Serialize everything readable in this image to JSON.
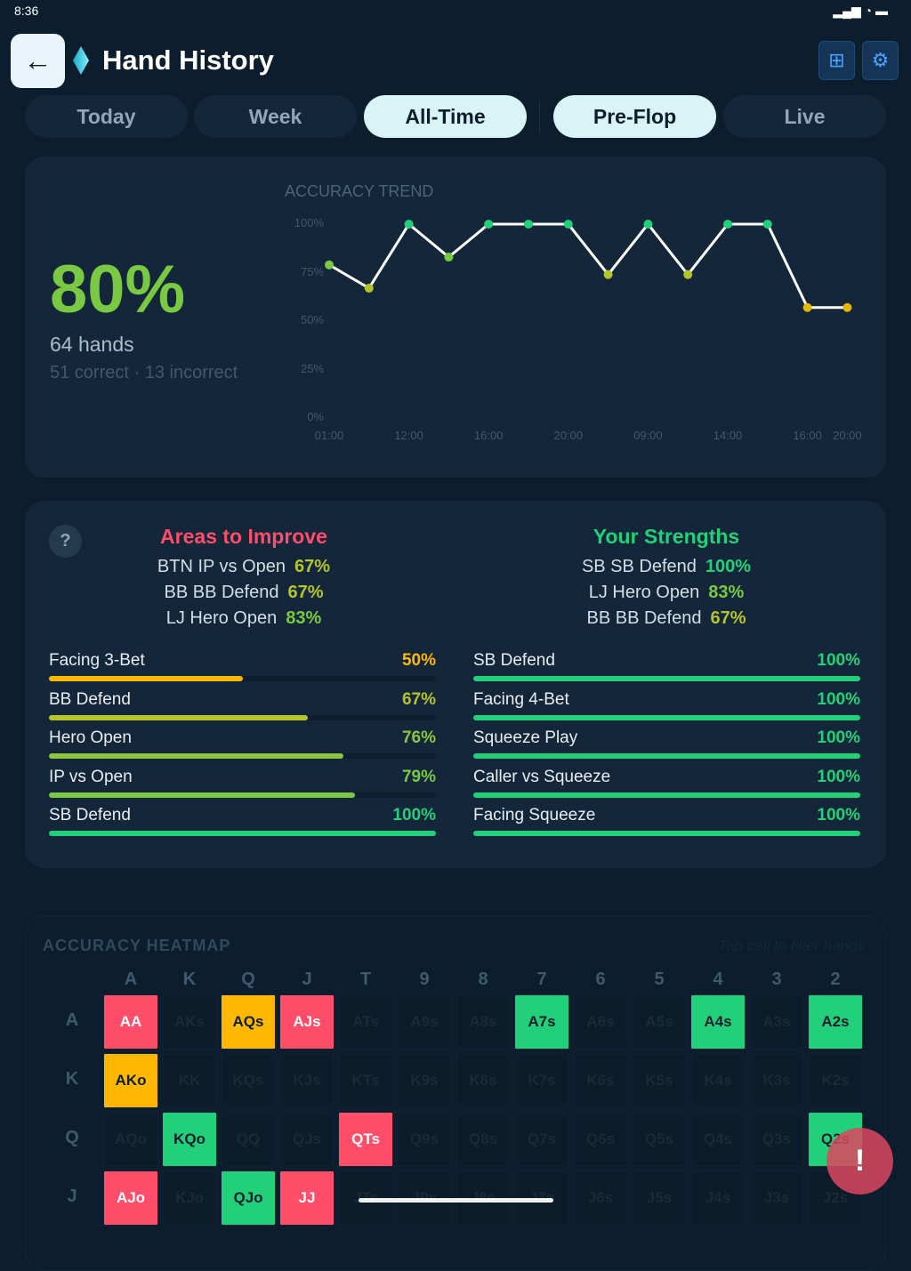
{
  "status_bar": {
    "time": "8:36"
  },
  "header": {
    "title": "Hand History",
    "back_icon": "arrow-left-icon",
    "grid_icon": "grid-icon",
    "settings_icon": "gear-icon"
  },
  "tabs": [
    {
      "label": "Today",
      "active": false
    },
    {
      "label": "Week",
      "active": false
    },
    {
      "label": "All-Time",
      "active": true
    },
    {
      "label": "Pre-Flop",
      "active": true
    },
    {
      "label": "Live",
      "active": false
    }
  ],
  "summary": {
    "accuracy": "80%",
    "hands": "64 hands",
    "breakdown": "51 correct · 13 incorrect"
  },
  "chart_data": {
    "type": "line",
    "title": "ACCURACY TREND",
    "ylim": [
      0,
      100
    ],
    "yticks": [
      "100%",
      "75%",
      "50%",
      "25%",
      "0%"
    ],
    "x": [
      "01:00",
      "",
      "12:00",
      "",
      "16:00",
      "",
      "20:00",
      "",
      "09:00",
      "",
      "14:00",
      "",
      "16:00",
      "20:00"
    ],
    "values": [
      79,
      67,
      100,
      83,
      100,
      100,
      100,
      74,
      100,
      74,
      100,
      100,
      57,
      57
    ]
  },
  "improve": {
    "title": "Areas to Improve",
    "items": [
      {
        "name": "BTN IP vs Open",
        "pct": "67%"
      },
      {
        "name": "BB BB Defend",
        "pct": "67%"
      },
      {
        "name": "LJ Hero Open",
        "pct": "83%"
      }
    ]
  },
  "strengths": {
    "title": "Your Strengths",
    "items": [
      {
        "name": "SB SB Defend",
        "pct": "100%"
      },
      {
        "name": "LJ Hero Open",
        "pct": "83%"
      },
      {
        "name": "BB BB Defend",
        "pct": "67%"
      }
    ]
  },
  "left_bars": [
    {
      "label": "Facing 3-Bet",
      "pct": "50%",
      "value": 50,
      "color": "#ffb800"
    },
    {
      "label": "BB Defend",
      "pct": "67%",
      "value": 67,
      "color": "#b5c42a"
    },
    {
      "label": "Hero Open",
      "pct": "76%",
      "value": 76,
      "color": "#8cc63f"
    },
    {
      "label": "IP vs Open",
      "pct": "79%",
      "value": 79,
      "color": "#7ac943"
    },
    {
      "label": "SB Defend",
      "pct": "100%",
      "value": 100,
      "color": "#22d07a"
    }
  ],
  "right_bars": [
    {
      "label": "SB Defend",
      "pct": "100%",
      "value": 100,
      "color": "#22d07a"
    },
    {
      "label": "Facing 4-Bet",
      "pct": "100%",
      "value": 100,
      "color": "#22d07a"
    },
    {
      "label": "Squeeze Play",
      "pct": "100%",
      "value": 100,
      "color": "#22d07a"
    },
    {
      "label": "Caller vs Squeeze",
      "pct": "100%",
      "value": 100,
      "color": "#22d07a"
    },
    {
      "label": "Facing Squeeze",
      "pct": "100%",
      "value": 100,
      "color": "#22d07a"
    }
  ],
  "heatmap": {
    "title": "ACCURACY HEATMAP",
    "hint": "Tap cell to filter hands",
    "cols": [
      "A",
      "K",
      "Q",
      "J",
      "T",
      "9",
      "8",
      "7",
      "6",
      "5",
      "4",
      "3",
      "2"
    ],
    "rows": [
      {
        "label": "A",
        "cells": [
          [
            "AA",
            "r"
          ],
          [
            "AKs",
            ""
          ],
          [
            "AQs",
            "o"
          ],
          [
            "AJs",
            "r"
          ],
          [
            "ATs",
            ""
          ],
          [
            "A9s",
            ""
          ],
          [
            "A8s",
            ""
          ],
          [
            "A7s",
            "g"
          ],
          [
            "A6s",
            ""
          ],
          [
            "A5s",
            ""
          ],
          [
            "A4s",
            "g"
          ],
          [
            "A3s",
            ""
          ],
          [
            "A2s",
            "g"
          ]
        ]
      },
      {
        "label": "K",
        "cells": [
          [
            "AKo",
            "o"
          ],
          [
            "KK",
            ""
          ],
          [
            "KQs",
            ""
          ],
          [
            "KJs",
            ""
          ],
          [
            "KTs",
            ""
          ],
          [
            "K9s",
            ""
          ],
          [
            "K8s",
            ""
          ],
          [
            "K7s",
            ""
          ],
          [
            "K6s",
            ""
          ],
          [
            "K5s",
            ""
          ],
          [
            "K4s",
            ""
          ],
          [
            "K3s",
            ""
          ],
          [
            "K2s",
            ""
          ]
        ]
      },
      {
        "label": "Q",
        "cells": [
          [
            "AQo",
            ""
          ],
          [
            "KQo",
            "g"
          ],
          [
            "QQ",
            ""
          ],
          [
            "QJs",
            ""
          ],
          [
            "QTs",
            "r"
          ],
          [
            "Q9s",
            ""
          ],
          [
            "Q8s",
            ""
          ],
          [
            "Q7s",
            ""
          ],
          [
            "Q6s",
            ""
          ],
          [
            "Q5s",
            ""
          ],
          [
            "Q4s",
            ""
          ],
          [
            "Q3s",
            ""
          ],
          [
            "Q2s",
            "g"
          ]
        ]
      },
      {
        "label": "J",
        "cells": [
          [
            "AJo",
            "r"
          ],
          [
            "KJo",
            ""
          ],
          [
            "QJo",
            "g"
          ],
          [
            "JJ",
            "r"
          ],
          [
            "JTs",
            ""
          ],
          [
            "J9s",
            ""
          ],
          [
            "J8s",
            ""
          ],
          [
            "J7s",
            ""
          ],
          [
            "J6s",
            ""
          ],
          [
            "J5s",
            ""
          ],
          [
            "J4s",
            ""
          ],
          [
            "J3s",
            ""
          ],
          [
            "J2s",
            ""
          ]
        ]
      }
    ]
  },
  "fab": {
    "label": "!"
  }
}
